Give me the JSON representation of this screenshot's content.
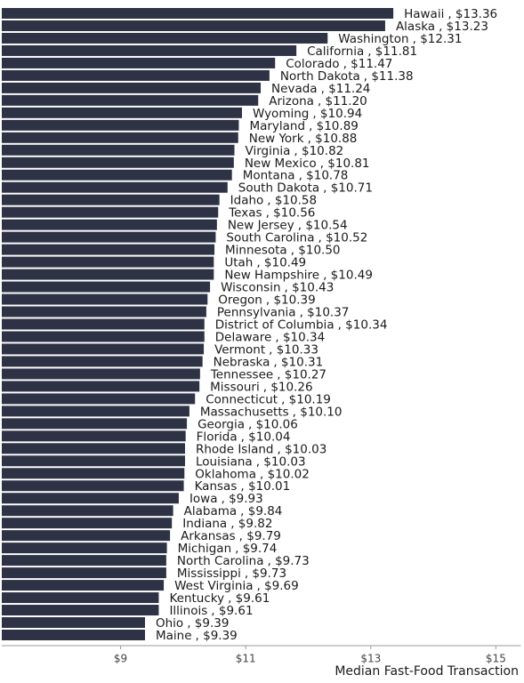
{
  "chart_data": {
    "type": "barh",
    "x_label": "Median Fast-Food Transaction",
    "categories": [
      "Hawaii",
      "Alaska",
      "Washington",
      "California",
      "Colorado",
      "North Dakota",
      "Nevada",
      "Arizona",
      "Wyoming",
      "Maryland",
      "New York",
      "Virginia",
      "New Mexico",
      "Montana",
      "South Dakota",
      "Idaho",
      "Texas",
      "New Jersey",
      "South Carolina",
      "Minnesota",
      "Utah",
      "New Hampshire",
      "Wisconsin",
      "Oregon",
      "Pennsylvania",
      "District of Columbia",
      "Delaware",
      "Vermont",
      "Nebraska",
      "Tennessee",
      "Missouri",
      "Connecticut",
      "Massachusetts",
      "Georgia",
      "Florida",
      "Rhode Island",
      "Louisiana",
      "Oklahoma",
      "Kansas",
      "Iowa",
      "Alabama",
      "Indiana",
      "Arkansas",
      "Michigan",
      "North Carolina",
      "Mississippi",
      "West Virginia",
      "Kentucky",
      "Illinois",
      "Ohio",
      "Maine"
    ],
    "values": [
      13.36,
      13.23,
      12.31,
      11.81,
      11.47,
      11.38,
      11.24,
      11.2,
      10.94,
      10.89,
      10.88,
      10.82,
      10.81,
      10.78,
      10.71,
      10.58,
      10.56,
      10.54,
      10.52,
      10.5,
      10.49,
      10.49,
      10.43,
      10.39,
      10.37,
      10.34,
      10.34,
      10.33,
      10.31,
      10.27,
      10.26,
      10.19,
      10.1,
      10.06,
      10.04,
      10.03,
      10.03,
      10.02,
      10.01,
      9.93,
      9.84,
      9.82,
      9.79,
      9.74,
      9.73,
      9.73,
      9.69,
      9.61,
      9.61,
      9.39,
      9.39
    ],
    "value_labels": [
      ", $13.36",
      ", $13.23",
      ", $12.31",
      ", $11.81",
      ", $11.47",
      ", $11.38",
      ", $11.24",
      ", $11.20",
      ", $10.94",
      ", $10.89",
      ", $10.88",
      ", $10.82",
      ", $10.81",
      ", $10.78",
      ", $10.71",
      ", $10.58",
      ", $10.56",
      ", $10.54",
      ", $10.52",
      ", $10.50",
      ", $10.49",
      ", $10.49",
      ", $10.43",
      ", $10.39",
      ", $10.37",
      ", $10.34",
      ", $10.34",
      ", $10.33",
      ", $10.31",
      ", $10.27",
      ", $10.26",
      ", $10.19",
      ", $10.10",
      ", $10.06",
      ", $10.04",
      ", $10.03",
      ", $10.03",
      ", $10.02",
      ", $10.01",
      ", $9.93",
      ", $9.84",
      ", $9.82",
      ", $9.79",
      ", $9.74",
      ", $9.73",
      ", $9.73",
      ", $9.69",
      ", $9.61",
      ", $9.61",
      ", $9.39",
      ", $9.39"
    ],
    "color": "#2e3245",
    "xlim": [
      7.1,
      15.4
    ],
    "xticks": [
      {
        "value": 9,
        "label": "$9"
      },
      {
        "value": 11,
        "label": "$11"
      },
      {
        "value": 13,
        "label": "$13"
      },
      {
        "value": 15,
        "label": "$15"
      }
    ]
  }
}
